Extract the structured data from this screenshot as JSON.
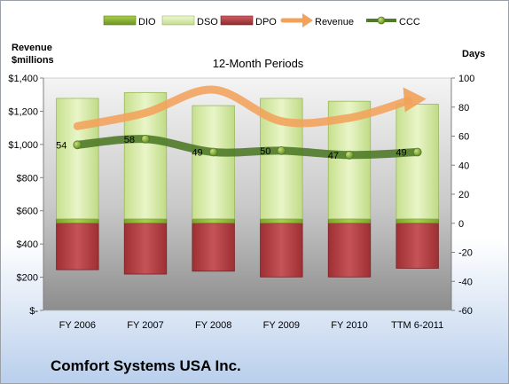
{
  "company_name": "Comfort Systems USA Inc.",
  "chart_data": {
    "type": "bar",
    "title": "12-Month Periods",
    "left_axis_title_line1": "Revenue",
    "left_axis_title_line2": "$millions",
    "right_axis_title": "Days",
    "categories": [
      "FY 2006",
      "FY 2007",
      "FY 2008",
      "FY 2009",
      "FY 2010",
      "TTM 6-2011"
    ],
    "left_ylim": [
      0,
      1400
    ],
    "left_ticks": [
      0,
      200,
      400,
      600,
      800,
      1000,
      1200,
      1400
    ],
    "left_tick_labels": [
      "$-",
      "$200",
      "$400",
      "$600",
      "$800",
      "$1,000",
      "$1,200",
      "$1,400"
    ],
    "right_ylim": [
      -60,
      100
    ],
    "right_ticks": [
      -60,
      -40,
      -20,
      0,
      20,
      40,
      60,
      80,
      100
    ],
    "right_tick_labels": [
      "-60",
      "-40",
      "-20",
      "0",
      "20",
      "40",
      "60",
      "80",
      "100"
    ],
    "grid": false,
    "legend_position": "top",
    "legend": [
      "DIO",
      "DSO",
      "DPO",
      "Revenue",
      "CCC"
    ],
    "series": [
      {
        "name": "DIO",
        "axis": "right",
        "kind": "stacked-bar",
        "color": "#8db832",
        "values": [
          3,
          3,
          3,
          3,
          3,
          3
        ]
      },
      {
        "name": "DSO",
        "axis": "right",
        "kind": "stacked-bar",
        "color": "#d8ebaa",
        "values": [
          83,
          87,
          78,
          83,
          81,
          79
        ]
      },
      {
        "name": "DPO",
        "axis": "right",
        "kind": "negative-bar",
        "color": "#b84044",
        "values": [
          -32,
          -35,
          -33,
          -37,
          -37,
          -31
        ]
      },
      {
        "name": "Revenue",
        "axis": "left",
        "kind": "smooth-arrow",
        "color": "#f2a25a",
        "values": [
          1110,
          1190,
          1330,
          1140,
          1160,
          1280
        ]
      },
      {
        "name": "CCC",
        "axis": "right",
        "kind": "line-markers",
        "color": "#4f7a28",
        "values": [
          54,
          58,
          49,
          50,
          47,
          49
        ]
      }
    ],
    "data_labels": [
      "54",
      "58",
      "49",
      "50",
      "47",
      "49"
    ]
  }
}
